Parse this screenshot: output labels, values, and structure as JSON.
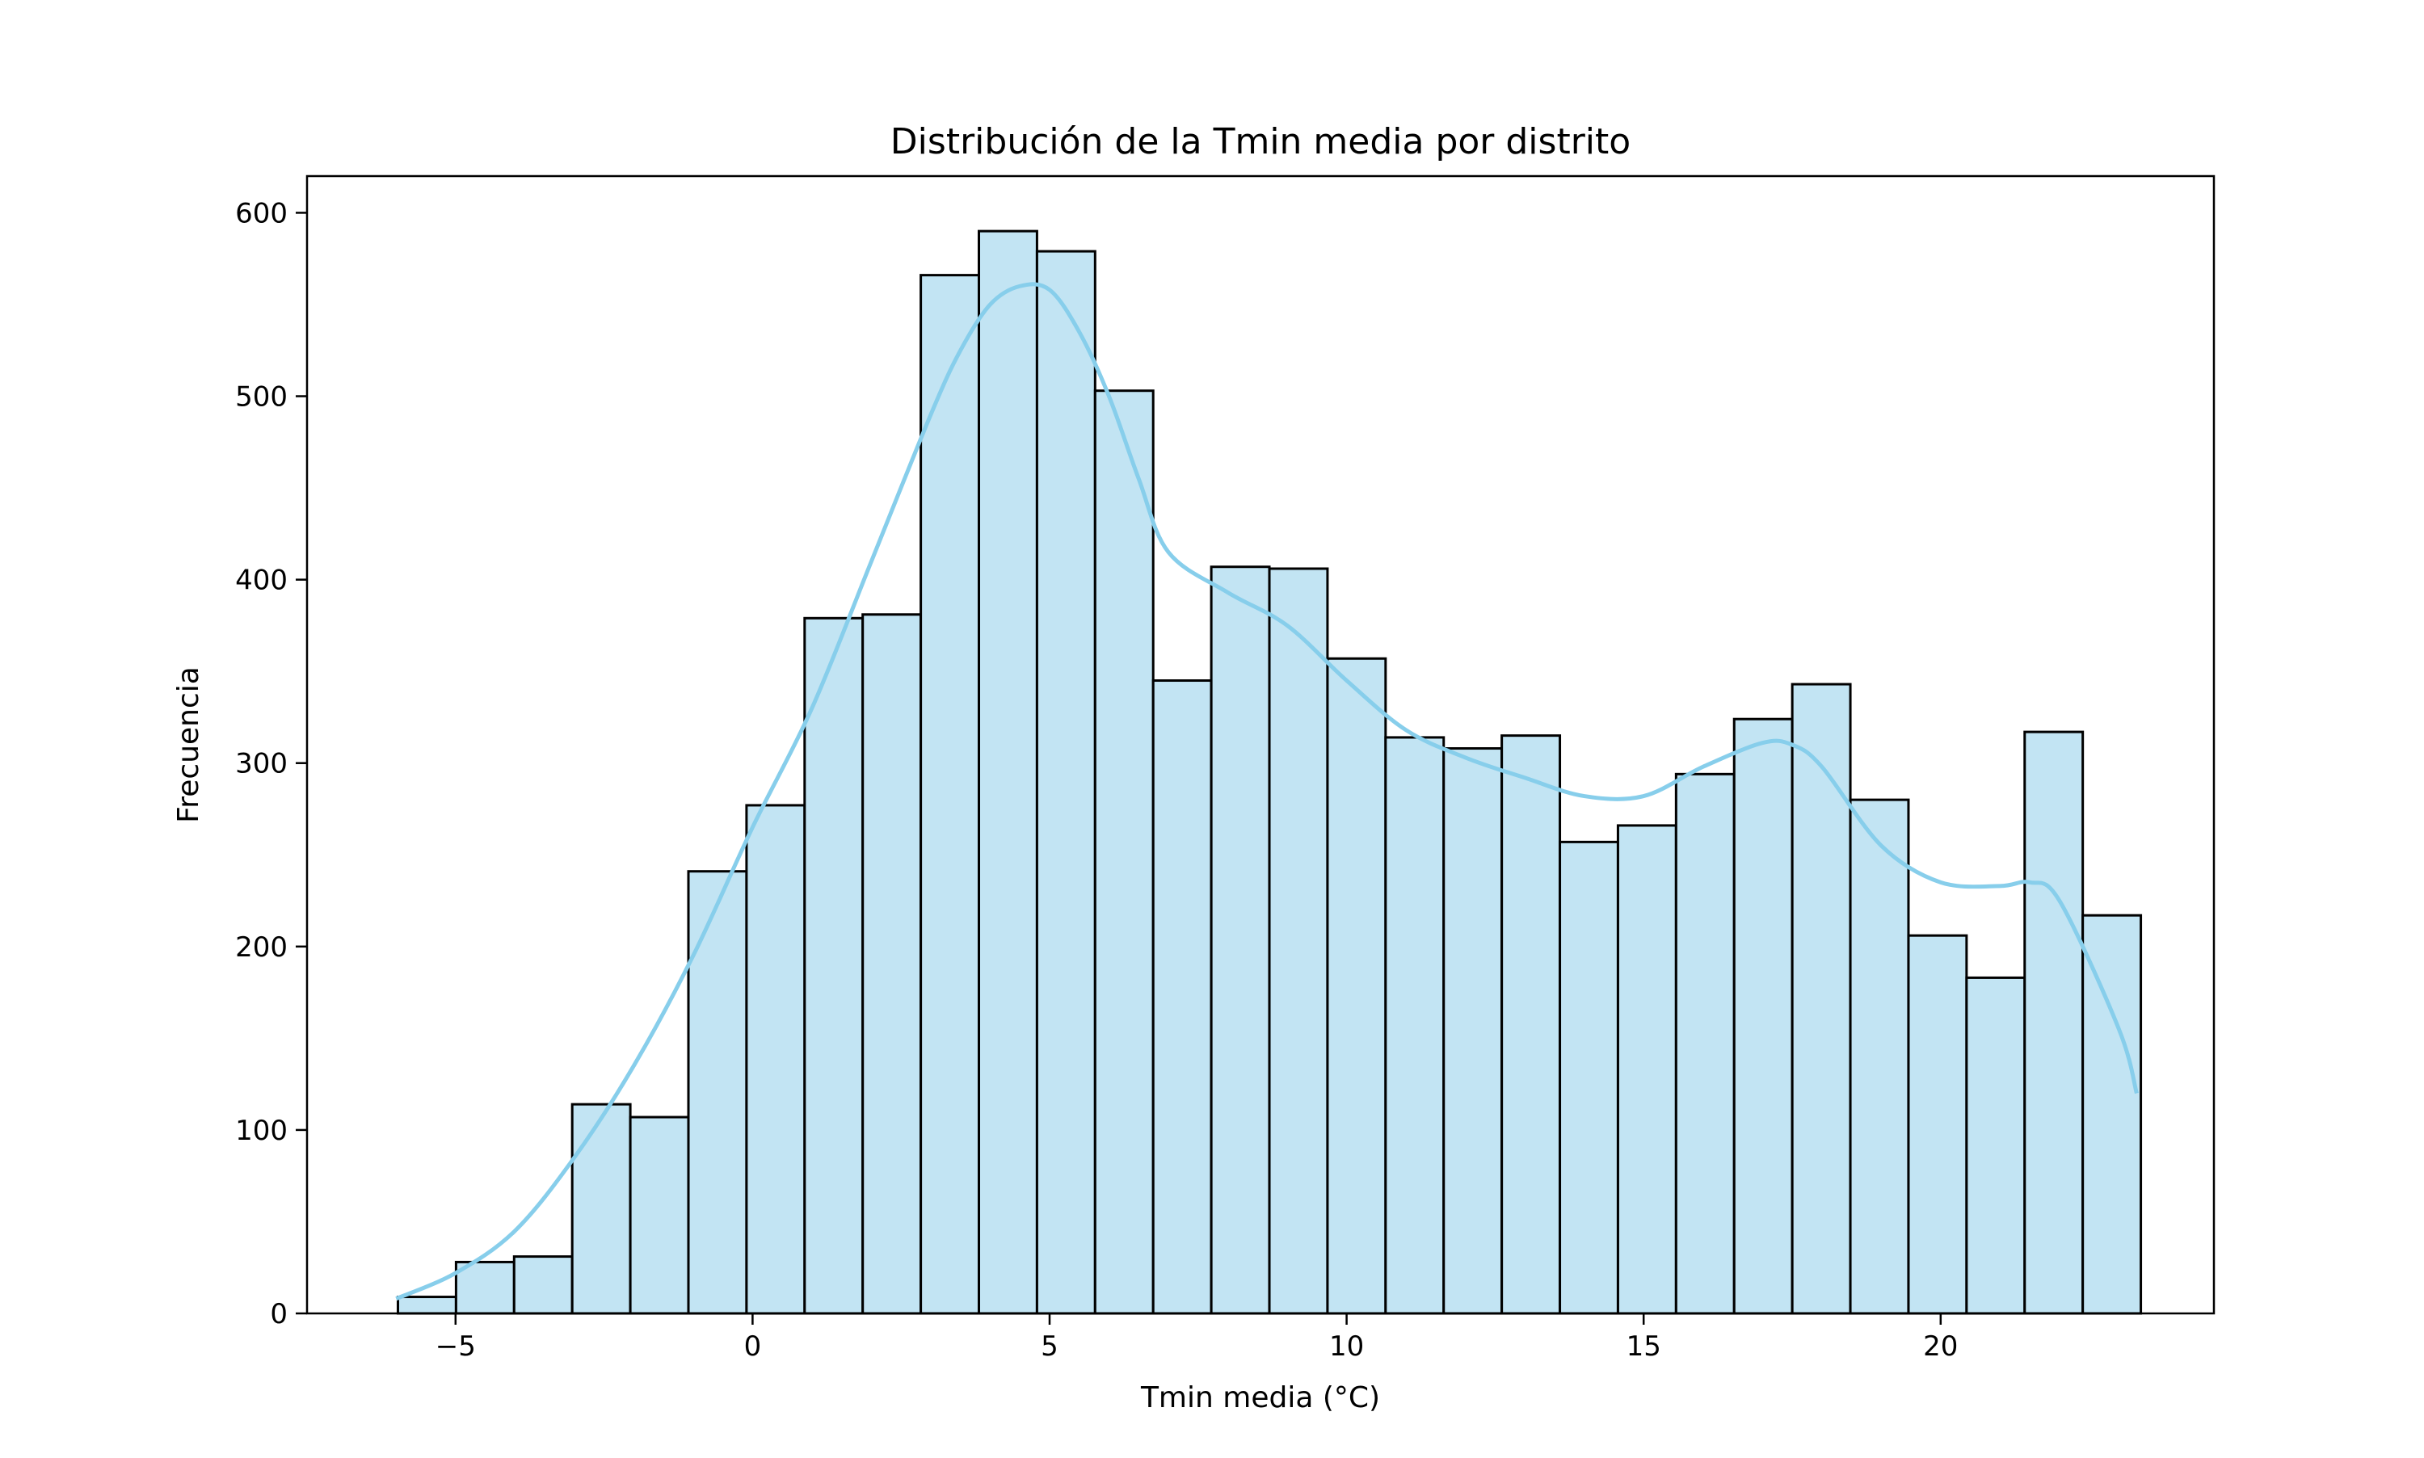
{
  "chart_data": {
    "type": "bar",
    "subtype": "histogram-with-kde",
    "title": "Distribución de la Tmin media por distrito",
    "xlabel": "Tmin media (°C)",
    "ylabel": "Frecuencia",
    "xlim": [
      -7.5,
      24.6
    ],
    "ylim": [
      0,
      620
    ],
    "xticks": [
      -5,
      0,
      5,
      10,
      15,
      20
    ],
    "xtick_labels": [
      "−5",
      "0",
      "5",
      "10",
      "15",
      "20"
    ],
    "yticks": [
      0,
      100,
      200,
      300,
      400,
      500,
      600
    ],
    "ytick_labels": [
      "0",
      "100",
      "200",
      "300",
      "400",
      "500",
      "600"
    ],
    "grid": false,
    "legend": "none",
    "bar_color": "#c2e4f3",
    "edge_color": "#000000",
    "kde_color": "#87ceeb",
    "bins": {
      "start": -5.97,
      "width": 0.978,
      "counts": [
        9,
        28,
        31,
        114,
        107,
        241,
        277,
        379,
        381,
        566,
        590,
        579,
        503,
        345,
        407,
        406,
        357,
        314,
        308,
        315,
        257,
        266,
        294,
        324,
        343,
        280,
        206,
        183,
        317,
        217
      ]
    },
    "kde": {
      "x": [
        -6.0,
        -5.0,
        -4.0,
        -3.0,
        -2.0,
        -1.0,
        0.0,
        1.0,
        2.0,
        3.0,
        3.5,
        4.0,
        4.5,
        5.0,
        5.5,
        6.0,
        6.5,
        7.0,
        8.0,
        9.0,
        10.0,
        11.0,
        12.0,
        13.0,
        14.0,
        15.0,
        16.0,
        17.0,
        17.5,
        18.0,
        19.0,
        20.0,
        21.0,
        21.5,
        22.0,
        23.0,
        23.3
      ],
      "y": [
        8,
        22,
        45,
        85,
        135,
        195,
        265,
        330,
        410,
        490,
        525,
        550,
        560,
        558,
        535,
        500,
        455,
        415,
        393,
        375,
        345,
        318,
        303,
        292,
        282,
        282,
        298,
        311,
        310,
        298,
        255,
        235,
        233,
        235,
        225,
        155,
        120
      ]
    }
  }
}
